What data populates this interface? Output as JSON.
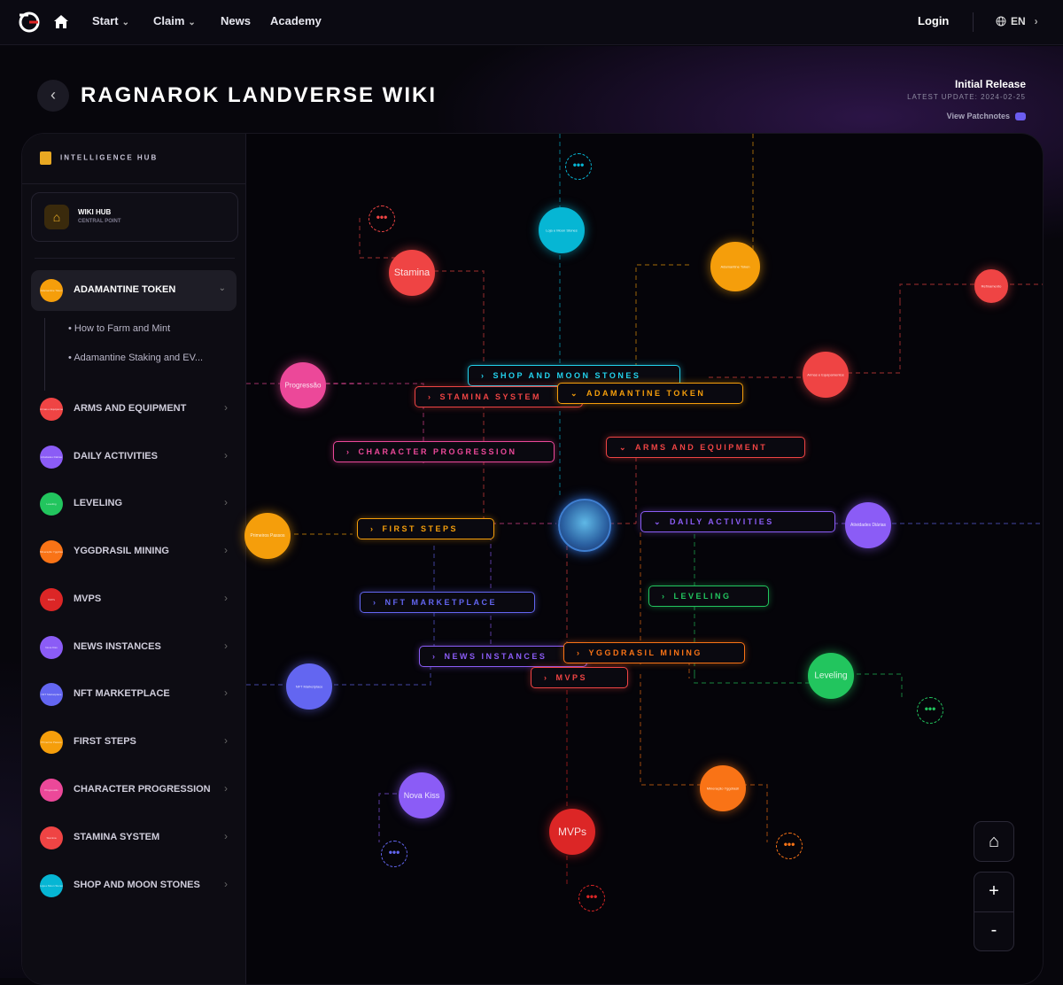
{
  "nav": {
    "links": [
      {
        "label": "Start",
        "has_dropdown": true
      },
      {
        "label": "Claim",
        "has_dropdown": true
      },
      {
        "label": "News",
        "has_dropdown": false
      },
      {
        "label": "Academy",
        "has_dropdown": false
      }
    ],
    "login": "Login",
    "language": "EN"
  },
  "header": {
    "title": "RAGNAROK LANDVERSE WIKI",
    "release": "Initial Release",
    "latest_update": "LATEST UPDATE: 2024-02-25",
    "patchnotes": "View Patchnotes"
  },
  "sidebar": {
    "heading": "INTELLIGENCE HUB",
    "wiki_hub": {
      "title": "WIKI HUB",
      "subtitle": "CENTRAL POINT"
    },
    "active_category": {
      "label": "ADAMANTINE TOKEN",
      "dot_text": "Adamantine Token",
      "color": "#f59e0b",
      "subitems": [
        "How to Farm and Mint",
        "Adamantine Staking and EV..."
      ]
    },
    "categories": [
      {
        "label": "ARMS AND EQUIPMENT",
        "dot_text": "Armas e Equipamentos",
        "color": "#ef4444"
      },
      {
        "label": "DAILY ACTIVITIES",
        "dot_text": "Atividades Diárias",
        "color": "#8b5cf6"
      },
      {
        "label": "LEVELING",
        "dot_text": "Leveling",
        "color": "#22c55e"
      },
      {
        "label": "YGGDRASIL MINING",
        "dot_text": "Mineração Yggdrasil",
        "color": "#f97316"
      },
      {
        "label": "MVPS",
        "dot_text": "MVPs",
        "color": "#dc2626"
      },
      {
        "label": "NEWS INSTANCES",
        "dot_text": "Nova Kiss",
        "color": "#8b5cf6"
      },
      {
        "label": "NFT MARKETPLACE",
        "dot_text": "NFT Marketplace",
        "color": "#6366f1"
      },
      {
        "label": "FIRST STEPS",
        "dot_text": "Primeiros Passos",
        "color": "#f59e0b"
      },
      {
        "label": "CHARACTER PROGRESSION",
        "dot_text": "Progressão",
        "color": "#ec4899"
      },
      {
        "label": "STAMINA SYSTEM",
        "dot_text": "Stamina",
        "color": "#ef4444"
      },
      {
        "label": "SHOP AND MOON STONES",
        "dot_text": "Loja e Moon Stones",
        "color": "#06b6d4"
      }
    ]
  },
  "map": {
    "labels": [
      {
        "text": "SHOP AND MOON STONES",
        "arrow": "›",
        "color": "#22d3ee"
      },
      {
        "text": "STAMINA SYSTEM",
        "arrow": "›",
        "color": "#ef4444"
      },
      {
        "text": "ADAMANTINE TOKEN",
        "arrow": "⌄",
        "color": "#f59e0b"
      },
      {
        "text": "CHARACTER PROGRESSION",
        "arrow": "›",
        "color": "#ec4899"
      },
      {
        "text": "ARMS AND EQUIPMENT",
        "arrow": "⌄",
        "color": "#ef4444"
      },
      {
        "text": "FIRST STEPS",
        "arrow": "›",
        "color": "#f59e0b"
      },
      {
        "text": "DAILY ACTIVITIES",
        "arrow": "⌄",
        "color": "#8b5cf6"
      },
      {
        "text": "NFT MARKETPLACE",
        "arrow": "›",
        "color": "#6366f1"
      },
      {
        "text": "LEVELING",
        "arrow": "›",
        "color": "#22c55e"
      },
      {
        "text": "NEWS INSTANCES",
        "arrow": "›",
        "color": "#8b5cf6"
      },
      {
        "text": "YGGDRASIL MINING",
        "arrow": "›",
        "color": "#f97316"
      },
      {
        "text": "MVPS",
        "arrow": "›",
        "color": "#ef4444"
      }
    ],
    "nodes": [
      {
        "text": "Loja e Moon Stones",
        "color": "#06b6d4"
      },
      {
        "text": "Stamina",
        "color": "#ef4444"
      },
      {
        "text": "Adamantine Token",
        "color": "#f59e0b"
      },
      {
        "text": "Refinamento",
        "color": "#ef4444"
      },
      {
        "text": "Progressão",
        "color": "#ec4899"
      },
      {
        "text": "Armas e Equipamentos",
        "color": "#ef4444"
      },
      {
        "text": "Primeiros Passos",
        "color": "#f59e0b"
      },
      {
        "text": "Atividades Diárias",
        "color": "#8b5cf6"
      },
      {
        "text": "NFT Marketplace",
        "color": "#6366f1"
      },
      {
        "text": "Leveling",
        "color": "#22c55e"
      },
      {
        "text": "Nova Kiss",
        "color": "#8b5cf6"
      },
      {
        "text": "Mineração Yggdrasil",
        "color": "#f97316"
      },
      {
        "text": "MVPs",
        "color": "#dc2626"
      }
    ],
    "more_glyph": "•••",
    "controls": {
      "home": "⌂",
      "zoom_in": "+",
      "zoom_out": "-"
    }
  }
}
